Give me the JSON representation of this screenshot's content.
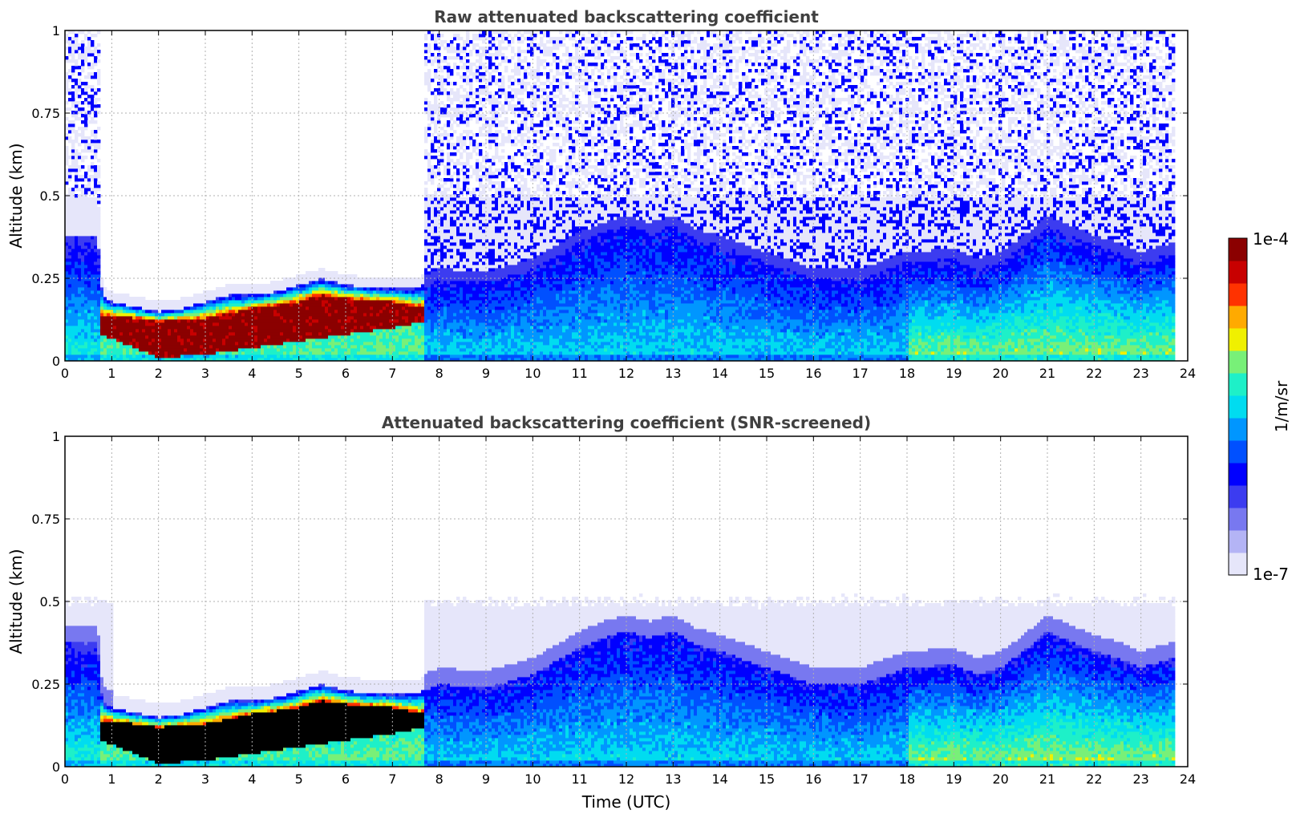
{
  "colors": {
    "colormap": [
      "#e6e6fa",
      "#b4b4f5",
      "#7878f0",
      "#3c3cf0",
      "#0000ff",
      "#0050ff",
      "#0096ff",
      "#00dcf0",
      "#1ef0c8",
      "#78f078",
      "#f0f000",
      "#ffaa00",
      "#ff3200",
      "#c80000",
      "#8b0000"
    ],
    "saturated_black": "#000000"
  },
  "chart_data": [
    {
      "type": "heatmap",
      "title": "Raw attenuated backscattering coefficient",
      "xlabel": "",
      "ylabel": "Altitude (km)",
      "xlim": [
        0,
        24
      ],
      "ylim": [
        0,
        1
      ],
      "xticks": [
        "0",
        "1",
        "2",
        "3",
        "4",
        "5",
        "6",
        "7",
        "8",
        "9",
        "10",
        "11",
        "12",
        "13",
        "14",
        "15",
        "16",
        "17",
        "18",
        "19",
        "20",
        "21",
        "22",
        "23",
        "24"
      ],
      "yticks": [
        "0",
        "0.25",
        "0.5",
        "0.75",
        "1"
      ],
      "grid": true,
      "data_end_hour": 23.7,
      "aerosol_layer_top_km": [
        [
          0,
          0.38
        ],
        [
          0.7,
          0.38
        ],
        [
          0.8,
          0.2
        ],
        [
          1,
          0.18
        ],
        [
          2,
          0.15
        ],
        [
          2.5,
          0.16
        ],
        [
          3,
          0.18
        ],
        [
          3.5,
          0.2
        ],
        [
          4,
          0.2
        ],
        [
          4.5,
          0.21
        ],
        [
          5,
          0.23
        ],
        [
          5.5,
          0.25
        ],
        [
          6,
          0.23
        ],
        [
          7,
          0.22
        ],
        [
          7.5,
          0.22
        ],
        [
          8,
          0.25
        ],
        [
          9,
          0.24
        ],
        [
          10,
          0.28
        ],
        [
          10.5,
          0.32
        ],
        [
          11,
          0.36
        ],
        [
          11.5,
          0.39
        ],
        [
          12,
          0.41
        ],
        [
          12.5,
          0.39
        ],
        [
          13,
          0.41
        ],
        [
          13.5,
          0.37
        ],
        [
          14,
          0.35
        ],
        [
          15,
          0.3
        ],
        [
          16,
          0.25
        ],
        [
          17,
          0.25
        ],
        [
          18,
          0.3
        ],
        [
          19,
          0.31
        ],
        [
          19.5,
          0.28
        ],
        [
          20,
          0.3
        ],
        [
          20.5,
          0.35
        ],
        [
          21,
          0.41
        ],
        [
          21.5,
          0.38
        ],
        [
          22,
          0.35
        ],
        [
          22.5,
          0.33
        ],
        [
          23,
          0.3
        ],
        [
          23.7,
          0.33
        ]
      ],
      "saturated_core_km": {
        "start_hour": 0.75,
        "end_hour": 7.7,
        "bottom": [
          [
            0.75,
            0.08
          ],
          [
            1.5,
            0.04
          ],
          [
            2,
            0.01
          ],
          [
            3,
            0.02
          ],
          [
            4,
            0.04
          ],
          [
            5,
            0.06
          ],
          [
            6,
            0.08
          ],
          [
            7,
            0.1
          ],
          [
            7.7,
            0.12
          ]
        ],
        "top": [
          [
            0.75,
            0.14
          ],
          [
            1.5,
            0.13
          ],
          [
            2,
            0.12
          ],
          [
            3,
            0.13
          ],
          [
            4,
            0.16
          ],
          [
            5,
            0.18
          ],
          [
            5.5,
            0.2
          ],
          [
            6,
            0.19
          ],
          [
            7,
            0.18
          ],
          [
            7.7,
            0.16
          ]
        ]
      },
      "noise_above_layer_from_hour": 7.7
    },
    {
      "type": "heatmap",
      "title": "Attenuated backscattering coefficient (SNR-screened)",
      "xlabel": "Time (UTC)",
      "ylabel": "Altitude (km)",
      "xlim": [
        0,
        24
      ],
      "ylim": [
        0,
        1
      ],
      "xticks": [
        "0",
        "1",
        "2",
        "3",
        "4",
        "5",
        "6",
        "7",
        "8",
        "9",
        "10",
        "11",
        "12",
        "13",
        "14",
        "15",
        "16",
        "17",
        "18",
        "19",
        "20",
        "21",
        "22",
        "23",
        "24"
      ],
      "yticks": [
        "0",
        "0.25",
        "0.5",
        "0.75",
        "1"
      ],
      "grid": true,
      "data_end_hour": 23.7,
      "screened_halo_top_km": 0.5,
      "saturated_color": "black"
    }
  ],
  "colorbar": {
    "label": "1/m/sr",
    "max_label": "1e-4",
    "min_label": "1e-7",
    "scale": "log",
    "range": [
      1e-07,
      0.0001
    ]
  }
}
